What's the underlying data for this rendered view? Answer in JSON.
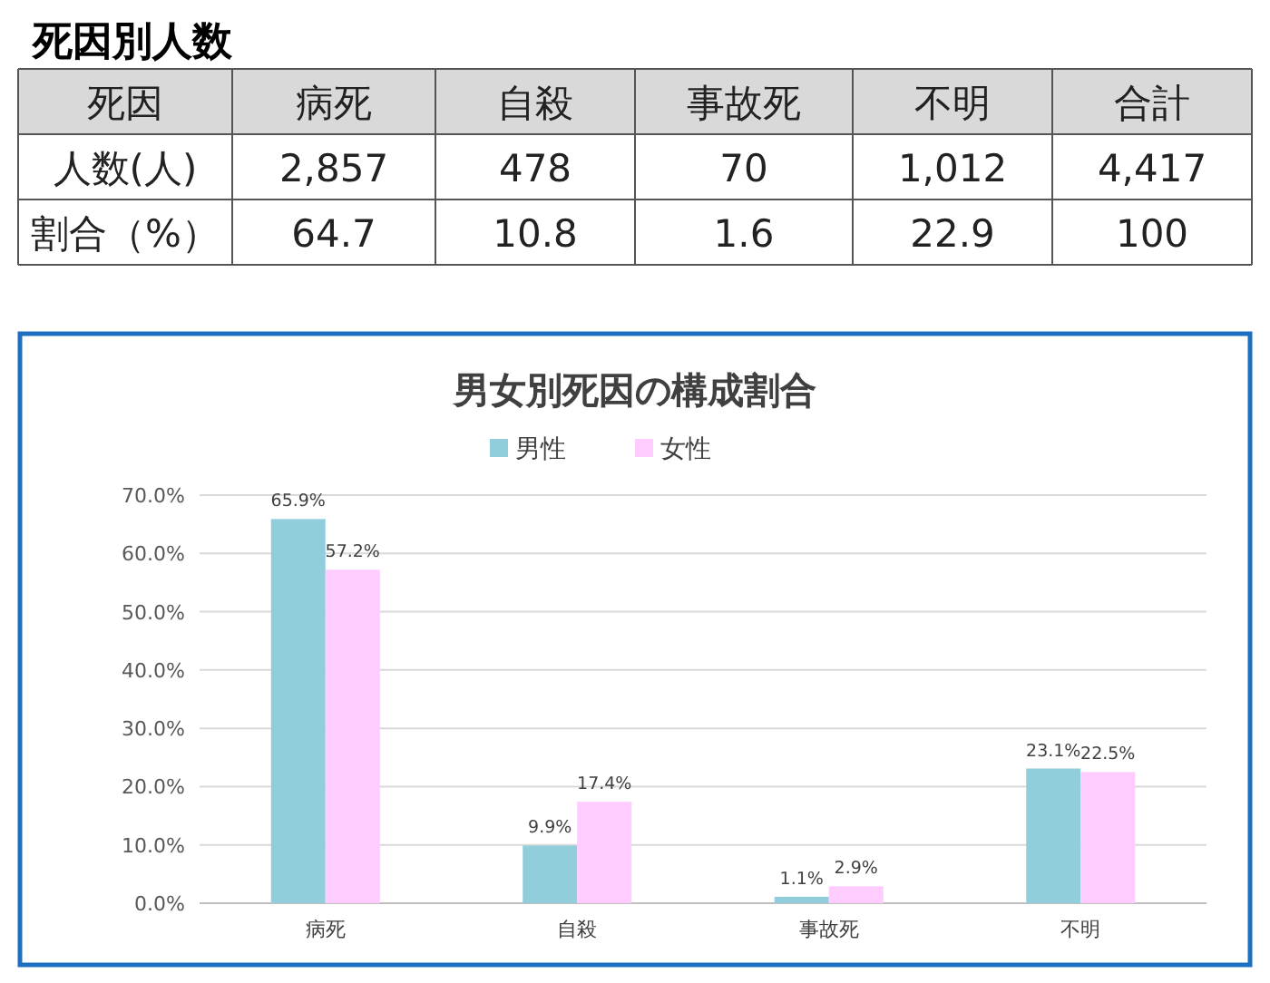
{
  "chart_data": [
    {
      "type": "other",
      "title": "死因別人数",
      "annotations": [
        "死因",
        "病死",
        "自殺",
        "事故死",
        "不明",
        "合計",
        "人数(人)",
        "2,857",
        "478",
        "70",
        "1,012",
        "4,417",
        "割合（%）",
        "64.7",
        "10.8",
        "1.6",
        "22.9",
        "100"
      ]
    },
    {
      "type": "bar",
      "title": "男女別死因の構成割合",
      "categories": [
        "病死",
        "自殺",
        "事故死",
        "不明"
      ],
      "series": [
        {
          "name": "男性",
          "color": "#92cddc",
          "values": [
            65.9,
            9.9,
            1.1,
            23.1
          ],
          "value_labels": [
            "65.9%",
            "9.9%",
            "1.1%",
            "23.1%"
          ]
        },
        {
          "name": "女性",
          "color": "#ffccff",
          "values": [
            57.2,
            17.4,
            2.9,
            22.5
          ],
          "value_labels": [
            "57.2%",
            "17.4%",
            "2.9%",
            "22.5%"
          ]
        }
      ],
      "ylim": [
        0,
        70
      ],
      "yticks": [
        {
          "value": 0,
          "label": "0.0%"
        },
        {
          "value": 10,
          "label": "10.0%"
        },
        {
          "value": 20,
          "label": "20.0%"
        },
        {
          "value": 30,
          "label": "30.0%"
        },
        {
          "value": 40,
          "label": "40.0%"
        },
        {
          "value": 50,
          "label": "50.0%"
        },
        {
          "value": 60,
          "label": "60.0%"
        },
        {
          "value": 70,
          "label": "70.0%"
        }
      ],
      "grid": "y",
      "legend": "top"
    }
  ]
}
